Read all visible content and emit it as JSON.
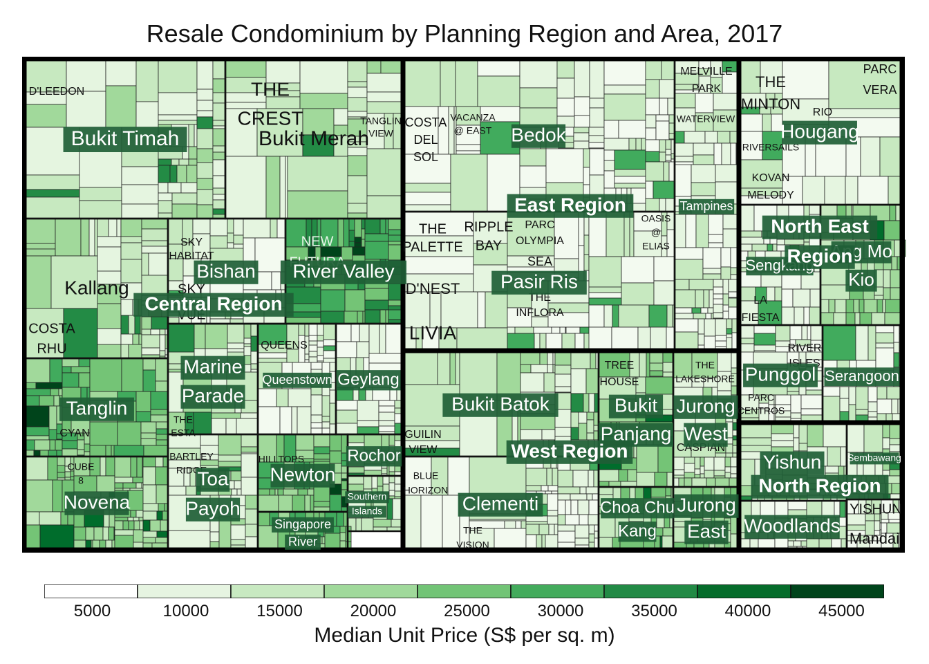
{
  "chart_data": {
    "type": "treemap",
    "title": "Resale Condominium by Planning Region and Area, 2017",
    "color_scale": {
      "title": "Median Unit Price (S$ per sq. m)",
      "ticks": [
        5000,
        10000,
        15000,
        20000,
        25000,
        30000,
        35000,
        40000,
        45000
      ],
      "colors": [
        "#ffffff",
        "#e6f4e1",
        "#c8e9c1",
        "#a0d99b",
        "#72c476",
        "#43ab5c",
        "#228a45",
        "#056c2b",
        "#00441b"
      ]
    },
    "regions": [
      {
        "name": "Central Region",
        "areas": [
          {
            "name": "Bukit Timah",
            "projects": [
              "D'LEEDON"
            ]
          },
          {
            "name": "Bukit Merah",
            "projects": [
              "THE CREST",
              "TANGLIN VIEW"
            ]
          },
          {
            "name": "Kallang",
            "projects": [
              "COSTA RHU"
            ]
          },
          {
            "name": "Bishan",
            "projects": [
              "SKY HABITAT",
              "SKY VUE"
            ]
          },
          {
            "name": "River Valley",
            "projects": [
              "NEW FUTURA"
            ]
          },
          {
            "name": "Tanglin",
            "projects": [
              "CYAN"
            ]
          },
          {
            "name": "Marine Parade",
            "projects": [
              "THE ESTA"
            ]
          },
          {
            "name": "Queenstown",
            "projects": [
              "QUEENS"
            ]
          },
          {
            "name": "Geylang",
            "projects": []
          },
          {
            "name": "Novena",
            "projects": [
              "CUBE 8"
            ]
          },
          {
            "name": "Toa Payoh",
            "projects": [
              "BARTLEY RIDGE"
            ]
          },
          {
            "name": "Newton",
            "projects": [
              "HILLTOPS"
            ]
          },
          {
            "name": "Rochor",
            "projects": []
          },
          {
            "name": "Southern Islands",
            "projects": []
          },
          {
            "name": "Singapore River",
            "projects": []
          }
        ]
      },
      {
        "name": "East Region",
        "areas": [
          {
            "name": "Bedok",
            "projects": [
              "COSTA DEL SOL",
              "VACANZA @ EAST"
            ]
          },
          {
            "name": "Tampines",
            "projects": [
              "MELVILLE PARK",
              "WATERVIEW"
            ]
          },
          {
            "name": "Pasir Ris",
            "projects": [
              "THE PALETTE",
              "RIPPLE BAY",
              "PARC OLYMPIA",
              "SEA",
              "THE INFLORA",
              "D'NEST",
              "LIVIA",
              "OASIS @ ELIAS"
            ]
          }
        ]
      },
      {
        "name": "West Region",
        "areas": [
          {
            "name": "Bukit Batok",
            "projects": [
              "GUILIN VIEW"
            ]
          },
          {
            "name": "Clementi",
            "projects": [
              "BLUE HORIZON",
              "THE VISION"
            ]
          },
          {
            "name": "Bukit Panjang",
            "projects": [
              "TREE HOUSE"
            ]
          },
          {
            "name": "Jurong West",
            "projects": [
              "THE LAKESHORE",
              "CASPIAN"
            ]
          },
          {
            "name": "Choa Chu Kang",
            "projects": []
          },
          {
            "name": "Jurong East",
            "projects": []
          }
        ]
      },
      {
        "name": "North East Region",
        "areas": [
          {
            "name": "Hougang",
            "projects": [
              "THE MINTON",
              "RIO",
              "RIVERSAILS",
              "KOVAN MELODY",
              "PARC VERA"
            ]
          },
          {
            "name": "Sengkang",
            "projects": [
              "LA FIESTA"
            ]
          },
          {
            "name": "Ang Mo Kio",
            "projects": []
          },
          {
            "name": "Punggol",
            "projects": [
              "RIVER ISLES",
              "PARC CENTROS"
            ]
          },
          {
            "name": "Serangoon",
            "projects": []
          }
        ]
      },
      {
        "name": "North Region",
        "areas": [
          {
            "name": "Yishun",
            "projects": [
              "YISHUN"
            ]
          },
          {
            "name": "Sembawang",
            "projects": []
          },
          {
            "name": "Woodlands",
            "projects": []
          },
          {
            "name": "Mandai",
            "projects": []
          }
        ]
      }
    ]
  }
}
